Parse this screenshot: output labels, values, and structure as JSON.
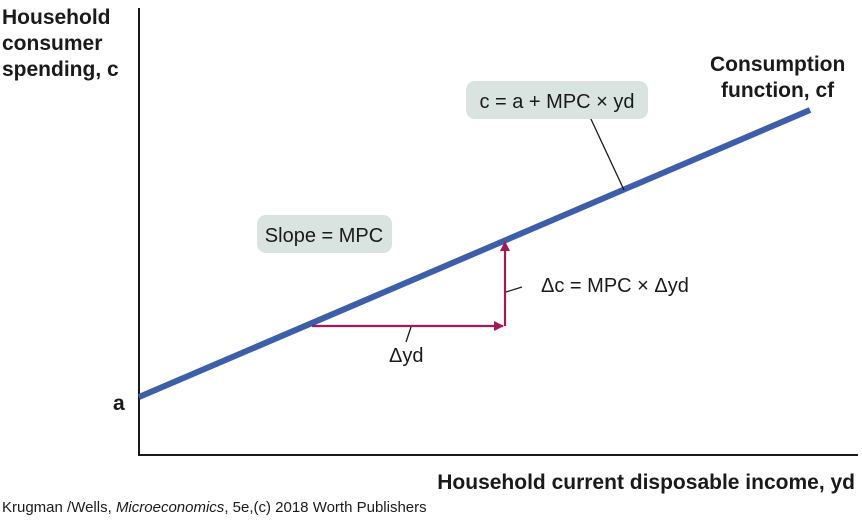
{
  "y_axis_label": [
    "Household",
    "consumer",
    "spending, c"
  ],
  "x_axis_label": "Household current disposable income, yd",
  "intercept_label": "a",
  "line_label": [
    "Consumption",
    "function, cf"
  ],
  "equation_label": "c = a + MPC × yd",
  "slope_label": "Slope = MPC",
  "delta_yd_label": "Δyd",
  "delta_c_label": "Δc = MPC × Δyd",
  "credit": {
    "authors": "Krugman /Wells, ",
    "title": "Microeconomics",
    "rest": ", 5e,(c) 2018 Worth Publishers"
  },
  "colors": {
    "line": "#3d5ea9",
    "arrows": "#a3195b",
    "label_box": "#d9e3df",
    "axis": "#1a1a1a"
  }
}
